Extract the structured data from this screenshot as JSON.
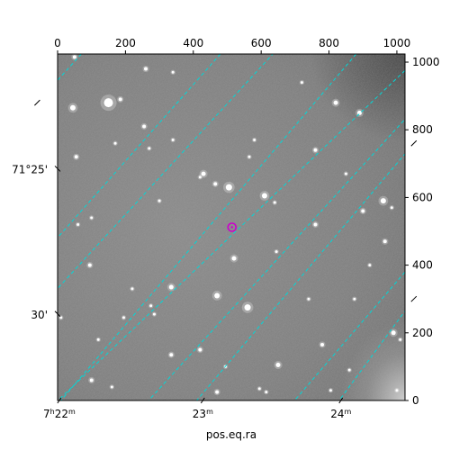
{
  "chart_data": {
    "type": "image",
    "colormap": "grayscale",
    "xlabel": "pos.eq.ra",
    "pixel_axes": {
      "x": {
        "range": [
          0,
          1024
        ],
        "ticks": [
          0,
          200,
          400,
          600,
          800,
          1000
        ],
        "labels": [
          "0",
          "200",
          "400",
          "600",
          "800",
          "1000"
        ]
      },
      "y": {
        "range": [
          0,
          1024
        ],
        "ticks": [
          0,
          200,
          400,
          600,
          800,
          1000
        ],
        "labels": [
          "0",
          "200",
          "400",
          "600",
          "800",
          "1000"
        ]
      }
    },
    "world_ticks": {
      "ra": [
        {
          "label": "7h22m",
          "x": 5
        },
        {
          "label": "23m",
          "x": 428
        },
        {
          "label": "24m",
          "x": 835
        }
      ],
      "dec": [
        {
          "label": "71°25'",
          "y": 685
        },
        {
          "label": "30'",
          "y": 256
        }
      ]
    },
    "grid": {
      "on": true,
      "style": "dashed",
      "color": "#00d8d8"
    },
    "grid_lines": [
      {
        "family": "ra",
        "from": [
          70,
          1024
        ],
        "to": [
          -60,
          880
        ]
      },
      {
        "family": "ra",
        "from": [
          480,
          1024
        ],
        "to": [
          -10,
          470
        ]
      },
      {
        "family": "ra",
        "from": [
          880,
          1024
        ],
        "to": [
          10,
          0
        ]
      },
      {
        "family": "ra",
        "from": [
          1050,
          760
        ],
        "to": [
          410,
          0
        ]
      },
      {
        "family": "ra",
        "from": [
          1050,
          300
        ],
        "to": [
          830,
          0
        ]
      },
      {
        "family": "dec",
        "from": [
          -10,
          320
        ],
        "to": [
          640,
          1030
        ]
      },
      {
        "family": "dec",
        "from": [
          -20,
          -20
        ],
        "to": [
          1050,
          1000
        ]
      },
      {
        "family": "dec",
        "from": [
          250,
          -20
        ],
        "to": [
          1050,
          860
        ]
      },
      {
        "family": "dec",
        "from": [
          690,
          -10
        ],
        "to": [
          1050,
          410
        ]
      }
    ],
    "marker": {
      "x": 514,
      "y": 512,
      "shape": "circle",
      "color": "#cc00cc"
    },
    "stars": [
      [
        50,
        1015,
        2
      ],
      [
        150,
        880,
        5
      ],
      [
        185,
        890,
        2
      ],
      [
        45,
        865,
        3
      ],
      [
        260,
        980,
        2
      ],
      [
        340,
        970,
        1.5
      ],
      [
        720,
        940,
        1.5
      ],
      [
        820,
        880,
        2.5
      ],
      [
        890,
        850,
        2.5
      ],
      [
        580,
        770,
        1.5
      ],
      [
        255,
        810,
        2
      ],
      [
        55,
        720,
        2
      ],
      [
        270,
        745,
        1.5
      ],
      [
        430,
        670,
        2.5
      ],
      [
        465,
        640,
        2
      ],
      [
        505,
        630,
        3.5
      ],
      [
        610,
        605,
        3
      ],
      [
        760,
        740,
        2
      ],
      [
        850,
        670,
        1.5
      ],
      [
        960,
        590,
        3
      ],
      [
        985,
        570,
        1.5
      ],
      [
        900,
        560,
        2
      ],
      [
        640,
        585,
        1.5
      ],
      [
        520,
        420,
        2.5
      ],
      [
        335,
        335,
        2.5
      ],
      [
        470,
        310,
        3
      ],
      [
        560,
        275,
        3.5
      ],
      [
        275,
        280,
        1.5
      ],
      [
        220,
        330,
        1.5
      ],
      [
        195,
        245,
        1.5
      ],
      [
        420,
        150,
        2
      ],
      [
        495,
        100,
        1.5
      ],
      [
        335,
        135,
        2
      ],
      [
        100,
        60,
        2
      ],
      [
        160,
        40,
        1.5
      ],
      [
        470,
        25,
        2
      ],
      [
        595,
        35,
        1.5
      ],
      [
        650,
        105,
        2.5
      ],
      [
        780,
        165,
        2
      ],
      [
        860,
        90,
        1.5
      ],
      [
        990,
        200,
        2.5
      ],
      [
        1010,
        180,
        1.5
      ],
      [
        1000,
        30,
        1.5
      ],
      [
        965,
        470,
        2
      ],
      [
        920,
        400,
        1.5
      ],
      [
        760,
        520,
        2
      ],
      [
        95,
        400,
        2
      ],
      [
        60,
        520,
        1.5
      ],
      [
        100,
        540,
        1.5
      ],
      [
        285,
        255,
        1.5
      ],
      [
        340,
        770,
        1.5
      ],
      [
        420,
        660,
        1.5
      ],
      [
        615,
        25,
        1.5
      ],
      [
        805,
        30,
        1.5
      ],
      [
        10,
        245,
        1.5
      ],
      [
        740,
        300,
        1.5
      ],
      [
        645,
        440,
        1.5
      ],
      [
        300,
        590,
        1.5
      ],
      [
        170,
        760,
        1.5
      ],
      [
        120,
        180,
        1.5
      ],
      [
        565,
        720,
        1.5
      ],
      [
        875,
        300,
        1.5
      ]
    ]
  }
}
